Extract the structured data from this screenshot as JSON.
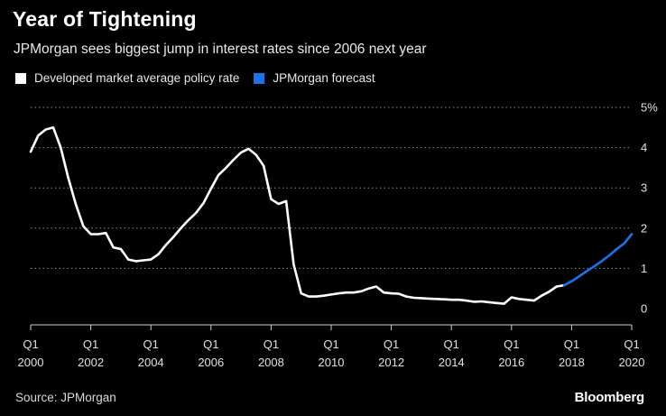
{
  "title": "Year of Tightening",
  "subtitle": "JPMorgan sees biggest jump in interest rates since 2006 next year",
  "source": "Source: JPMorgan",
  "brand": "Bloomberg",
  "colors": {
    "background": "#000000",
    "actual": "#ffffff",
    "forecast": "#1a73e8",
    "grid": "#8c8c8c"
  },
  "legend": [
    {
      "label": "Developed market average policy rate",
      "color": "#ffffff"
    },
    {
      "label": "JPMorgan forecast",
      "color": "#1a73e8"
    }
  ],
  "chart_data": {
    "type": "line",
    "title": "Year of Tightening",
    "subtitle": "JPMorgan sees biggest jump in interest rates since 2006 next year",
    "xlabel": "",
    "ylabel": "",
    "ylim": [
      0,
      5
    ],
    "xlim": [
      2000,
      2020
    ],
    "y_ticks": [
      {
        "value": 0,
        "label": "0"
      },
      {
        "value": 1,
        "label": "1"
      },
      {
        "value": 2,
        "label": "2"
      },
      {
        "value": 3,
        "label": "3"
      },
      {
        "value": 4,
        "label": "4"
      },
      {
        "value": 5,
        "label": "5%"
      }
    ],
    "x_ticks": [
      {
        "value": 2000,
        "quarter": "Q1",
        "year": "2000"
      },
      {
        "value": 2002,
        "quarter": "Q1",
        "year": "2002"
      },
      {
        "value": 2004,
        "quarter": "Q1",
        "year": "2004"
      },
      {
        "value": 2006,
        "quarter": "Q1",
        "year": "2006"
      },
      {
        "value": 2008,
        "quarter": "Q1",
        "year": "2008"
      },
      {
        "value": 2010,
        "quarter": "Q1",
        "year": "2010"
      },
      {
        "value": 2012,
        "quarter": "Q1",
        "year": "2012"
      },
      {
        "value": 2014,
        "quarter": "Q1",
        "year": "2014"
      },
      {
        "value": 2016,
        "quarter": "Q1",
        "year": "2016"
      },
      {
        "value": 2018,
        "quarter": "Q1",
        "year": "2018"
      },
      {
        "value": 2020,
        "quarter": "Q1",
        "year": "2020"
      }
    ],
    "grid": "horizontal dotted",
    "legend_position": "top-left",
    "series": [
      {
        "name": "Developed market average policy rate",
        "color": "#ffffff",
        "points": [
          [
            2000.0,
            3.9
          ],
          [
            2000.25,
            4.3
          ],
          [
            2000.5,
            4.45
          ],
          [
            2000.75,
            4.5
          ],
          [
            2001.0,
            4.0
          ],
          [
            2001.25,
            3.25
          ],
          [
            2001.5,
            2.6
          ],
          [
            2001.75,
            2.05
          ],
          [
            2002.0,
            1.85
          ],
          [
            2002.25,
            1.85
          ],
          [
            2002.5,
            1.88
          ],
          [
            2002.75,
            1.52
          ],
          [
            2003.0,
            1.48
          ],
          [
            2003.25,
            1.22
          ],
          [
            2003.5,
            1.18
          ],
          [
            2003.75,
            1.2
          ],
          [
            2004.0,
            1.22
          ],
          [
            2004.25,
            1.35
          ],
          [
            2004.5,
            1.58
          ],
          [
            2004.75,
            1.78
          ],
          [
            2005.0,
            2.0
          ],
          [
            2005.25,
            2.2
          ],
          [
            2005.5,
            2.38
          ],
          [
            2005.75,
            2.62
          ],
          [
            2006.0,
            2.98
          ],
          [
            2006.25,
            3.32
          ],
          [
            2006.5,
            3.5
          ],
          [
            2006.75,
            3.7
          ],
          [
            2007.0,
            3.88
          ],
          [
            2007.25,
            3.97
          ],
          [
            2007.5,
            3.82
          ],
          [
            2007.75,
            3.55
          ],
          [
            2008.0,
            2.72
          ],
          [
            2008.25,
            2.6
          ],
          [
            2008.5,
            2.67
          ],
          [
            2008.75,
            1.1
          ],
          [
            2009.0,
            0.38
          ],
          [
            2009.25,
            0.3
          ],
          [
            2009.5,
            0.3
          ],
          [
            2009.75,
            0.32
          ],
          [
            2010.0,
            0.35
          ],
          [
            2010.25,
            0.38
          ],
          [
            2010.5,
            0.4
          ],
          [
            2010.75,
            0.4
          ],
          [
            2011.0,
            0.43
          ],
          [
            2011.25,
            0.5
          ],
          [
            2011.5,
            0.55
          ],
          [
            2011.75,
            0.4
          ],
          [
            2012.0,
            0.38
          ],
          [
            2012.25,
            0.37
          ],
          [
            2012.5,
            0.3
          ],
          [
            2012.75,
            0.27
          ],
          [
            2013.0,
            0.26
          ],
          [
            2013.25,
            0.25
          ],
          [
            2013.5,
            0.24
          ],
          [
            2013.75,
            0.23
          ],
          [
            2014.0,
            0.22
          ],
          [
            2014.25,
            0.22
          ],
          [
            2014.5,
            0.2
          ],
          [
            2014.75,
            0.17
          ],
          [
            2015.0,
            0.18
          ],
          [
            2015.25,
            0.16
          ],
          [
            2015.5,
            0.14
          ],
          [
            2015.75,
            0.12
          ],
          [
            2016.0,
            0.28
          ],
          [
            2016.25,
            0.24
          ],
          [
            2016.5,
            0.22
          ],
          [
            2016.75,
            0.2
          ],
          [
            2017.0,
            0.32
          ],
          [
            2017.25,
            0.42
          ],
          [
            2017.5,
            0.55
          ],
          [
            2017.75,
            0.58
          ]
        ]
      },
      {
        "name": "JPMorgan forecast",
        "color": "#1a73e8",
        "points": [
          [
            2017.75,
            0.58
          ],
          [
            2018.0,
            0.68
          ],
          [
            2018.25,
            0.8
          ],
          [
            2018.5,
            0.93
          ],
          [
            2018.75,
            1.05
          ],
          [
            2019.0,
            1.18
          ],
          [
            2019.25,
            1.32
          ],
          [
            2019.5,
            1.48
          ],
          [
            2019.75,
            1.62
          ],
          [
            2020.0,
            1.85
          ]
        ]
      }
    ]
  }
}
